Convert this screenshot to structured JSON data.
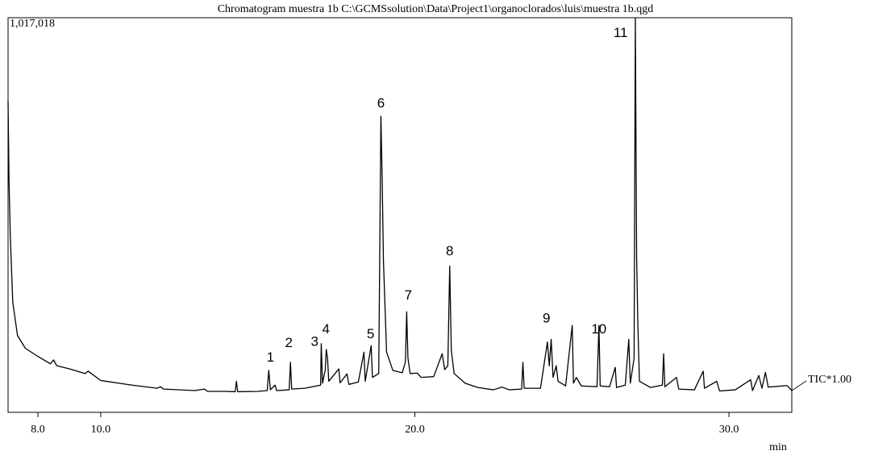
{
  "chart_data": {
    "type": "line",
    "title": "Chromatogram muestra 1b C:\\GCMSsolution\\Data\\Project1\\organoclorados\\luis\\muestra 1b.qgd",
    "x_label": "min",
    "xlim": [
      7.05,
      32.0
    ],
    "ylim": [
      0,
      1017018
    ],
    "xticks": [
      {
        "value": 8,
        "label": "8.0"
      },
      {
        "value": 10,
        "label": "10.0"
      },
      {
        "value": 20,
        "label": "20.0"
      },
      {
        "value": 30,
        "label": "30.0"
      }
    ],
    "yticks": [
      {
        "value": 1017018,
        "label": "1,017,018"
      }
    ],
    "series": [
      {
        "name": "TIC*1.00",
        "color": "#000000",
        "x": [
          7.05,
          7.08,
          7.12,
          7.2,
          7.35,
          7.6,
          8.0,
          8.4,
          8.5,
          8.6,
          9.0,
          9.5,
          9.6,
          10.0,
          11.0,
          11.8,
          11.9,
          12.0,
          13.0,
          13.3,
          13.4,
          14.0,
          14.28,
          14.32,
          14.36,
          15.0,
          15.3,
          15.35,
          15.4,
          15.55,
          15.6,
          16.0,
          16.04,
          16.08,
          16.5,
          17.0,
          17.02,
          17.06,
          17.15,
          17.18,
          17.22,
          17.26,
          17.58,
          17.62,
          17.84,
          17.9,
          18.2,
          18.38,
          18.42,
          18.61,
          18.65,
          18.85,
          18.92,
          18.96,
          19.0,
          19.1,
          19.3,
          19.6,
          19.7,
          19.74,
          19.78,
          19.85,
          20.08,
          20.2,
          20.6,
          20.87,
          20.95,
          21.05,
          21.11,
          21.16,
          21.25,
          21.6,
          22.0,
          22.5,
          22.78,
          23.0,
          23.4,
          23.44,
          23.48,
          24.0,
          24.22,
          24.28,
          24.34,
          24.4,
          24.5,
          24.56,
          24.8,
          25.01,
          25.05,
          25.14,
          25.3,
          25.8,
          25.86,
          25.9,
          26.2,
          26.38,
          26.42,
          26.7,
          26.81,
          26.86,
          26.98,
          27.02,
          27.06,
          27.1,
          27.15,
          27.5,
          27.88,
          27.92,
          27.96,
          28.33,
          28.4,
          28.9,
          29.18,
          29.22,
          29.61,
          29.7,
          30.2,
          30.69,
          30.75,
          30.95,
          31.05,
          31.16,
          31.25,
          31.85,
          32.0
        ],
        "values": [
          802000,
          600000,
          457000,
          284000,
          198000,
          165000,
          144000,
          125000,
          135000,
          120000,
          112000,
          100000,
          106000,
          82000,
          70000,
          62000,
          66000,
          60000,
          56000,
          60000,
          54000,
          54000,
          53000,
          80000,
          53000,
          54000,
          56000,
          108000,
          58000,
          70000,
          56000,
          58000,
          129000,
          60000,
          62000,
          70000,
          177000,
          75000,
          110000,
          162000,
          140000,
          80000,
          112000,
          76000,
          99000,
          72000,
          78000,
          155000,
          80000,
          172000,
          90000,
          100000,
          763000,
          600000,
          392000,
          155000,
          108000,
          102000,
          130000,
          259000,
          140000,
          100000,
          101000,
          90000,
          92000,
          151000,
          110000,
          120000,
          377000,
          160000,
          100000,
          75000,
          64000,
          58000,
          65000,
          58000,
          60000,
          129000,
          62000,
          62000,
          181000,
          120000,
          188000,
          90000,
          120000,
          80000,
          68000,
          224000,
          75000,
          90000,
          68000,
          66000,
          224000,
          68000,
          66000,
          116000,
          64000,
          70000,
          188000,
          75000,
          140000,
          1017000,
          400000,
          224000,
          80000,
          64000,
          70000,
          151000,
          66000,
          90000,
          60000,
          58000,
          106000,
          62000,
          80000,
          55000,
          58000,
          84000,
          56000,
          95000,
          62000,
          103000,
          65000,
          69000,
          56000
        ]
      }
    ],
    "annotations": [
      {
        "text": "1",
        "x": 15.4,
        "y": 140000
      },
      {
        "text": "2",
        "x": 15.99,
        "y": 177000
      },
      {
        "text": "3",
        "x": 16.81,
        "y": 181000
      },
      {
        "text": "4",
        "x": 17.17,
        "y": 213000
      },
      {
        "text": "5",
        "x": 18.59,
        "y": 200000
      },
      {
        "text": "6",
        "x": 18.92,
        "y": 795000
      },
      {
        "text": "7",
        "x": 19.79,
        "y": 300000
      },
      {
        "text": "8",
        "x": 21.11,
        "y": 414000
      },
      {
        "text": "9",
        "x": 24.19,
        "y": 241000
      },
      {
        "text": "10",
        "x": 25.86,
        "y": 213000
      },
      {
        "text": "11",
        "x": 26.55,
        "y": 976000
      }
    ]
  }
}
